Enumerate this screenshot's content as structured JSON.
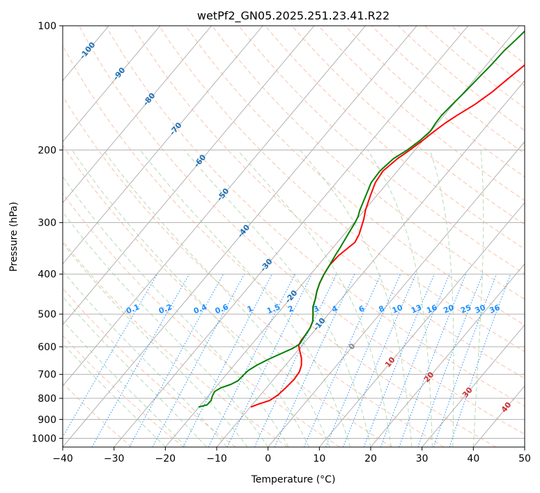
{
  "chart_data": {
    "type": "line",
    "chart_kind": "skew-t log-p diagram",
    "title": "wetPf2_GN05.2025.251.23.41.R22",
    "xlabel": "Temperature (°C)",
    "ylabel": "Pressure (hPa)",
    "xlim": [
      -40,
      50
    ],
    "ylim": [
      1050,
      100
    ],
    "y_scale": "log",
    "grid": true,
    "x_ticks": [
      -40,
      -30,
      -20,
      -10,
      0,
      10,
      20,
      30,
      40,
      50
    ],
    "y_ticks": [
      100,
      200,
      300,
      400,
      500,
      600,
      700,
      800,
      900,
      1000
    ],
    "series": [
      {
        "color": "#ff0000",
        "points": [
          {
            "p": 840,
            "t": -9.9
          },
          {
            "p": 825,
            "t": -8.8
          },
          {
            "p": 810,
            "t": -7.3
          },
          {
            "p": 785,
            "t": -6.6
          },
          {
            "p": 760,
            "t": -6.3
          },
          {
            "p": 720,
            "t": -6.0
          },
          {
            "p": 690,
            "t": -6.2
          },
          {
            "p": 665,
            "t": -6.9
          },
          {
            "p": 640,
            "t": -8.0
          },
          {
            "p": 615,
            "t": -9.5
          },
          {
            "p": 595,
            "t": -10.7
          },
          {
            "p": 580,
            "t": -11.0
          },
          {
            "p": 560,
            "t": -11.1
          },
          {
            "p": 540,
            "t": -11.3
          },
          {
            "p": 520,
            "t": -11.9
          },
          {
            "p": 500,
            "t": -13.0
          },
          {
            "p": 480,
            "t": -14.2
          },
          {
            "p": 460,
            "t": -15.0
          },
          {
            "p": 440,
            "t": -16.0
          },
          {
            "p": 420,
            "t": -16.8
          },
          {
            "p": 400,
            "t": -17.4
          },
          {
            "p": 380,
            "t": -17.8
          },
          {
            "p": 360,
            "t": -17.6
          },
          {
            "p": 345,
            "t": -17.0
          },
          {
            "p": 335,
            "t": -16.6
          },
          {
            "p": 320,
            "t": -17.1
          },
          {
            "p": 305,
            "t": -18.0
          },
          {
            "p": 295,
            "t": -18.6
          },
          {
            "p": 280,
            "t": -19.8
          },
          {
            "p": 260,
            "t": -21.1
          },
          {
            "p": 240,
            "t": -22.4
          },
          {
            "p": 225,
            "t": -22.8
          },
          {
            "p": 210,
            "t": -22.0
          },
          {
            "p": 200,
            "t": -21.0
          },
          {
            "p": 190,
            "t": -20.1
          },
          {
            "p": 180,
            "t": -19.3
          },
          {
            "p": 172,
            "t": -18.5
          },
          {
            "p": 165,
            "t": -17.5
          },
          {
            "p": 155,
            "t": -15.8
          },
          {
            "p": 145,
            "t": -14.5
          },
          {
            "p": 135,
            "t": -13.6
          },
          {
            "p": 125,
            "t": -12.6
          },
          {
            "p": 115,
            "t": -11.8
          },
          {
            "p": 108,
            "t": -11.5
          },
          {
            "p": 100,
            "t": -11.0
          }
        ]
      },
      {
        "color": "#008000",
        "points": [
          {
            "p": 840,
            "t": -20.1
          },
          {
            "p": 830,
            "t": -18.8
          },
          {
            "p": 810,
            "t": -18.7
          },
          {
            "p": 790,
            "t": -19.2
          },
          {
            "p": 770,
            "t": -19.5
          },
          {
            "p": 755,
            "t": -18.9
          },
          {
            "p": 740,
            "t": -17.5
          },
          {
            "p": 725,
            "t": -16.7
          },
          {
            "p": 705,
            "t": -16.6
          },
          {
            "p": 685,
            "t": -16.4
          },
          {
            "p": 665,
            "t": -15.6
          },
          {
            "p": 645,
            "t": -14.4
          },
          {
            "p": 625,
            "t": -12.9
          },
          {
            "p": 605,
            "t": -11.3
          },
          {
            "p": 590,
            "t": -10.7
          },
          {
            "p": 575,
            "t": -10.9
          },
          {
            "p": 560,
            "t": -11.1
          },
          {
            "p": 540,
            "t": -11.3
          },
          {
            "p": 520,
            "t": -11.9
          },
          {
            "p": 500,
            "t": -13.0
          },
          {
            "p": 480,
            "t": -14.2
          },
          {
            "p": 460,
            "t": -15.0
          },
          {
            "p": 440,
            "t": -16.0
          },
          {
            "p": 420,
            "t": -16.8
          },
          {
            "p": 400,
            "t": -17.4
          },
          {
            "p": 380,
            "t": -17.8
          },
          {
            "p": 360,
            "t": -18.3
          },
          {
            "p": 345,
            "t": -18.6
          },
          {
            "p": 330,
            "t": -19.0
          },
          {
            "p": 315,
            "t": -19.4
          },
          {
            "p": 300,
            "t": -19.8
          },
          {
            "p": 290,
            "t": -20.2
          },
          {
            "p": 280,
            "t": -20.9
          },
          {
            "p": 260,
            "t": -22.0
          },
          {
            "p": 240,
            "t": -23.2
          },
          {
            "p": 225,
            "t": -23.4
          },
          {
            "p": 210,
            "t": -22.8
          },
          {
            "p": 200,
            "t": -21.5
          },
          {
            "p": 190,
            "t": -20.6
          },
          {
            "p": 180,
            "t": -20.1
          },
          {
            "p": 172,
            "t": -20.4
          },
          {
            "p": 165,
            "t": -20.5
          },
          {
            "p": 155,
            "t": -20.2
          },
          {
            "p": 145,
            "t": -19.8
          },
          {
            "p": 135,
            "t": -19.5
          },
          {
            "p": 125,
            "t": -19.1
          },
          {
            "p": 115,
            "t": -18.9
          },
          {
            "p": 108,
            "t": -18.4
          },
          {
            "p": 100,
            "t": -17.9
          }
        ]
      }
    ],
    "isotherm_labels": [
      {
        "text": "-100",
        "t": -100,
        "p": 115,
        "color": "#1f6fb4"
      },
      {
        "text": "-90",
        "t": -90,
        "p": 131,
        "color": "#1f6fb4"
      },
      {
        "text": "-80",
        "t": -80,
        "p": 151,
        "color": "#1f6fb4"
      },
      {
        "text": "-70",
        "t": -70,
        "p": 178,
        "color": "#1f6fb4"
      },
      {
        "text": "-60",
        "t": -60,
        "p": 213,
        "color": "#1f6fb4"
      },
      {
        "text": "-50",
        "t": -50,
        "p": 257,
        "color": "#1f6fb4"
      },
      {
        "text": "-40",
        "t": -40,
        "p": 315,
        "color": "#1f6fb4"
      },
      {
        "text": "-30",
        "t": -30,
        "p": 381,
        "color": "#1f6fb4"
      },
      {
        "text": "-20",
        "t": -20,
        "p": 454,
        "color": "#1f6fb4"
      },
      {
        "text": "-10",
        "t": -10,
        "p": 530,
        "color": "#1f6fb4"
      },
      {
        "text": "0",
        "t": 0,
        "p": 600,
        "color": "#888888"
      },
      {
        "text": "10",
        "t": 10,
        "p": 655,
        "color": "#cc3030"
      },
      {
        "text": "20",
        "t": 20,
        "p": 712,
        "color": "#cc3030"
      },
      {
        "text": "30",
        "t": 30,
        "p": 775,
        "color": "#cc3030"
      },
      {
        "text": "40",
        "t": 40,
        "p": 842,
        "color": "#cc3030"
      }
    ],
    "mixing_ratio_labels": [
      "0.1",
      "0.2",
      "0.4",
      "0.6",
      "1",
      "1.5",
      "2",
      "3",
      "4",
      "6",
      "8",
      "10",
      "13",
      "16",
      "20",
      "25",
      "30",
      "36"
    ],
    "mixing_ratio_label_pressure": 500
  }
}
